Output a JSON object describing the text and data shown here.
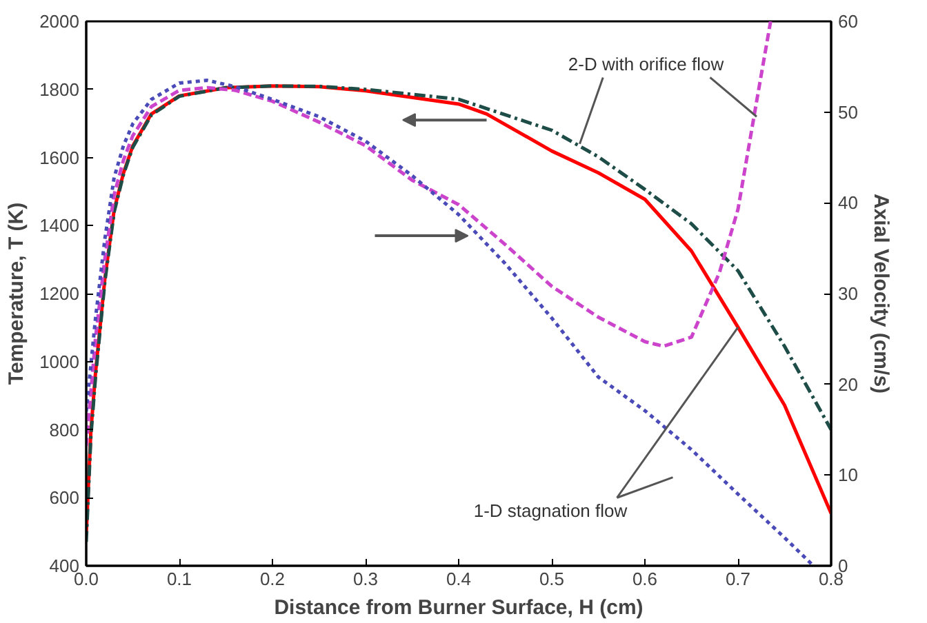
{
  "chart_data": {
    "type": "line",
    "xlabel": "Distance from Burner Surface, H (cm)",
    "ylabel": "Temperature, T (K)",
    "y2label": "Axial Velocity (cm/s)",
    "xlim": [
      0,
      0.8
    ],
    "xticks": [
      {
        "value": 0,
        "label": "0.0"
      },
      0.1,
      0.2,
      0.3,
      0.4,
      0.5,
      0.6,
      0.7,
      0.8
    ],
    "ylim": [
      400,
      2000
    ],
    "yticks": [
      400,
      600,
      800,
      1000,
      1200,
      1400,
      1600,
      1800,
      2000
    ],
    "y2lim": [
      0,
      60
    ],
    "y2ticks": [
      0,
      10,
      20,
      30,
      40,
      50,
      60
    ],
    "grid": false,
    "marker": "none",
    "series": [
      {
        "color": "#ff0000",
        "line_style": "solid",
        "x": [
          0,
          0.005,
          0.01,
          0.02,
          0.03,
          0.04,
          0.05,
          0.07,
          0.1,
          0.15,
          0.2,
          0.25,
          0.3,
          0.4,
          0.43,
          0.5,
          0.55,
          0.6,
          0.65,
          0.7,
          0.75,
          0.8
        ],
        "values": [
          491,
          795,
          968,
          1243,
          1446,
          1554,
          1634,
          1728,
          1781,
          1805,
          1810,
          1808,
          1796,
          1757,
          1728,
          1619,
          1555,
          1477,
          1325,
          1101,
          872,
          554
        ]
      },
      {
        "color": "#1e4d48",
        "line_style": "dashdot",
        "x": [
          0,
          0.005,
          0.01,
          0.02,
          0.03,
          0.04,
          0.05,
          0.07,
          0.1,
          0.15,
          0.2,
          0.25,
          0.3,
          0.4,
          0.5,
          0.55,
          0.6,
          0.65,
          0.7,
          0.75,
          0.8
        ],
        "values": [
          470,
          780,
          955,
          1235,
          1440,
          1550,
          1630,
          1725,
          1780,
          1805,
          1810,
          1809,
          1800,
          1771,
          1680,
          1602,
          1506,
          1405,
          1267,
          1045,
          800
        ]
      },
      {
        "color": "#cc44cc",
        "line_style": "dashed",
        "axis": "y2",
        "x": [
          0,
          0.01,
          0.02,
          0.03,
          0.04,
          0.05,
          0.07,
          0.1,
          0.13,
          0.16,
          0.2,
          0.25,
          0.3,
          0.35,
          0.4,
          0.45,
          0.5,
          0.55,
          0.6,
          0.62,
          0.65,
          0.68,
          0.7,
          0.72,
          0.735
        ],
        "values": [
          13.2,
          25.1,
          33.8,
          40.9,
          44.7,
          47.4,
          50.6,
          52.4,
          52.7,
          52.4,
          51.2,
          48.9,
          46.3,
          42.5,
          39.8,
          35.4,
          30.8,
          27.4,
          24.7,
          24.2,
          25.2,
          32.3,
          39.3,
          51.2,
          60
        ]
      },
      {
        "color": "#4a4ab8",
        "line_style": "dotted",
        "axis": "y2",
        "x": [
          0,
          0.01,
          0.02,
          0.03,
          0.04,
          0.05,
          0.07,
          0.1,
          0.13,
          0.16,
          0.2,
          0.25,
          0.3,
          0.35,
          0.4,
          0.45,
          0.5,
          0.55,
          0.6,
          0.65,
          0.7,
          0.75,
          0.78
        ],
        "values": [
          17,
          27.3,
          36,
          42.8,
          46.3,
          48.7,
          51.4,
          53.2,
          53.5,
          52.8,
          51.4,
          49.5,
          46.8,
          43,
          38.7,
          33.3,
          27.3,
          20.8,
          17.1,
          12.8,
          7.9,
          3.1,
          0.1
        ]
      }
    ],
    "annotations": [
      {
        "text": "2-D with orifice flow",
        "x": 0.53,
        "y": 1640
      },
      {
        "text": "1-D stagnation flow",
        "x": 0.7,
        "y": 1101
      }
    ]
  }
}
